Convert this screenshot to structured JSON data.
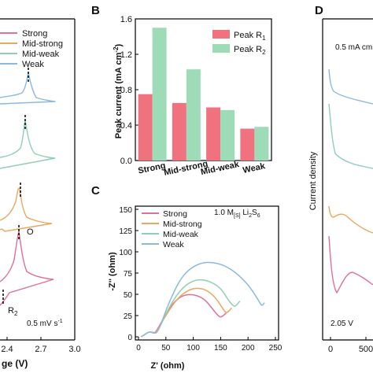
{
  "panel_letters": {
    "b": "B",
    "c": "C",
    "d": "D"
  },
  "colors": {
    "strong": "#e0709a",
    "mid_strong": "#e8a95e",
    "mid_weak": "#8fcfb2",
    "weak": "#8db9dd",
    "bar_r1": "#f0727f",
    "bar_r2": "#9ddcb6"
  },
  "panel_a": {
    "legend": [
      "Strong",
      "Mid-strong",
      "Mid-weak",
      "Weak"
    ],
    "xticks": [
      "2.4",
      "2.7",
      "3.0"
    ],
    "xlabel_partial": "ge (V)",
    "annot_o": "O",
    "annot_r2": "R",
    "annot_r2_sub": "2",
    "scan_rate": "0.5 mV s",
    "scan_rate_sup": "-1"
  },
  "chart_data": [
    {
      "type": "bar",
      "panel": "B",
      "categories": [
        "Strong",
        "Mid-strong",
        "Mid-weak",
        "Weak"
      ],
      "series": [
        {
          "name": "Peak R1",
          "values": [
            0.75,
            0.65,
            0.6,
            0.36
          ]
        },
        {
          "name": "Peak R2",
          "values": [
            1.5,
            1.03,
            0.57,
            0.38
          ]
        }
      ],
      "legend_labels": [
        {
          "main": "Peak R",
          "sub": "1"
        },
        {
          "main": "Peak R",
          "sub": "2"
        }
      ],
      "ylabel_main": "Peak current (mA cm",
      "ylabel_sup": "-2",
      "ylabel_end": ")",
      "ylim": [
        0,
        1.6
      ],
      "yticks": [
        "0.0",
        "0.4",
        "0.8",
        "1.2",
        "1.6"
      ],
      "legend_position": "top-right"
    },
    {
      "type": "line",
      "panel": "C",
      "title_parts": {
        "conc": "1.0 M",
        "sub_s": "[S]",
        "species": " Li",
        "sub_2": "2",
        "s": "S",
        "sub_6": "6"
      },
      "xlabel": "Z' (ohm)",
      "ylabel": "-Z'' (ohm)",
      "xlim": [
        0,
        250
      ],
      "ylim": [
        0,
        150
      ],
      "xticks": [
        "0",
        "50",
        "100",
        "150",
        "200",
        "250"
      ],
      "yticks": [
        "0",
        "25",
        "50",
        "75",
        "100",
        "125",
        "150"
      ],
      "legend_position": "top-left",
      "series": [
        {
          "name": "Strong",
          "x": [
            5,
            12,
            20,
            25,
            30,
            40,
            60,
            80,
            100,
            120,
            135,
            145,
            150,
            155,
            160
          ],
          "y": [
            0,
            3,
            6,
            5,
            4,
            15,
            38,
            49,
            50,
            45,
            33,
            25,
            23,
            25,
            28
          ]
        },
        {
          "name": "Mid-strong",
          "x": [
            5,
            12,
            20,
            27,
            32,
            45,
            70,
            95,
            120,
            140,
            155,
            160,
            165,
            170
          ],
          "y": [
            0,
            3,
            6,
            5,
            4,
            20,
            45,
            57,
            57,
            47,
            32,
            28,
            30,
            34
          ]
        },
        {
          "name": "Mid-weak",
          "x": [
            5,
            12,
            20,
            28,
            34,
            50,
            75,
            100,
            125,
            150,
            165,
            175,
            180,
            185
          ],
          "y": [
            0,
            3,
            6,
            5,
            4,
            28,
            55,
            67,
            67,
            58,
            42,
            35,
            38,
            42
          ]
        },
        {
          "name": "Weak",
          "x": [
            5,
            12,
            20,
            28,
            35,
            55,
            80,
            110,
            140,
            170,
            200,
            220,
            225,
            230
          ],
          "y": [
            0,
            3,
            6,
            5,
            4,
            40,
            73,
            87,
            88,
            80,
            62,
            42,
            36,
            40
          ]
        }
      ]
    },
    {
      "type": "line",
      "panel": "D",
      "ylabel": "Current density",
      "xticks": [
        "0",
        "500"
      ],
      "label_current": "0.5 mA cm",
      "label_voltage": "2.05 V"
    }
  ]
}
